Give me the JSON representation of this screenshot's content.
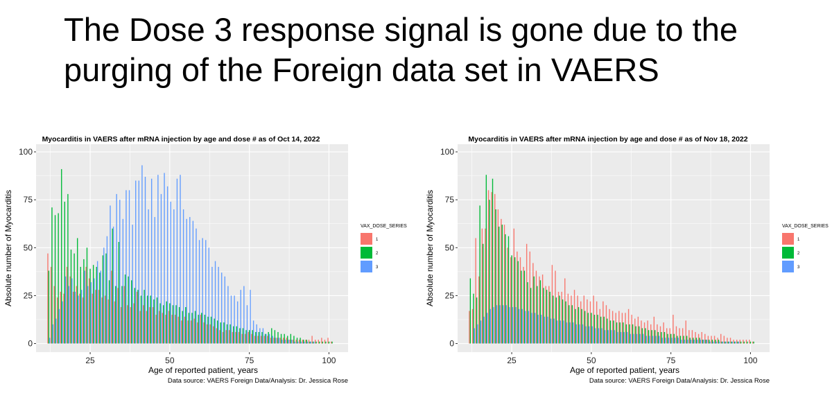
{
  "slide": {
    "title": "The Dose 3 response signal is gone due to the purging of the Foreign data set in VAERS"
  },
  "colors": {
    "dose_1": "#F8766D",
    "dose_2": "#00BA38",
    "dose_3": "#619CFF",
    "panel_bg": "#EBEBEB",
    "grid": "#FFFFFF"
  },
  "chart_data": [
    {
      "type": "bar",
      "title": "Myocarditis in VAERS after mRNA injection by age and dose # as of Oct 14, 2022",
      "xlabel": "Age of reported patient, years",
      "ylabel": "Absolute number of Myocarditis",
      "caption": "Data source: VAERS Foreign Data/Analysis: Dr. Jessica Rose",
      "xlim": [
        8,
        106
      ],
      "ylim": [
        -4.5,
        104
      ],
      "x_ticks": [
        25,
        50,
        75,
        100
      ],
      "y_ticks": [
        0,
        25,
        50,
        75,
        100
      ],
      "grid": true,
      "legend_title": "VAX_DOSE_SERIES",
      "legend_position": "right",
      "x": [
        12,
        13,
        14,
        15,
        16,
        17,
        18,
        19,
        20,
        21,
        22,
        23,
        24,
        25,
        26,
        27,
        28,
        29,
        30,
        31,
        32,
        33,
        34,
        35,
        36,
        37,
        38,
        39,
        40,
        41,
        42,
        43,
        44,
        45,
        46,
        47,
        48,
        49,
        50,
        51,
        52,
        53,
        54,
        55,
        56,
        57,
        58,
        59,
        60,
        61,
        62,
        63,
        64,
        65,
        66,
        67,
        68,
        69,
        70,
        71,
        72,
        73,
        74,
        75,
        76,
        77,
        78,
        79,
        80,
        81,
        82,
        83,
        84,
        85,
        86,
        87,
        88,
        89,
        90,
        91,
        92,
        93,
        94,
        95,
        96,
        97,
        98,
        99,
        100,
        101
      ],
      "series": [
        {
          "name": "1",
          "values": [
            47,
            40,
            30,
            24,
            27,
            26,
            40,
            35,
            27,
            30,
            26,
            24,
            40,
            34,
            26,
            28,
            28,
            24,
            25,
            23,
            38,
            22,
            29,
            19,
            30,
            20,
            19,
            21,
            27,
            17,
            20,
            17,
            19,
            19,
            15,
            17,
            16,
            15,
            17,
            15,
            15,
            14,
            12,
            14,
            12,
            12,
            13,
            11,
            15,
            11,
            10,
            10,
            9,
            8,
            7,
            6,
            7,
            7,
            6,
            6,
            6,
            5,
            5,
            6,
            5,
            4,
            4,
            4,
            4,
            4,
            3,
            3,
            3,
            3,
            3,
            3,
            2,
            2,
            2,
            2,
            2,
            2,
            2,
            4,
            2,
            2,
            3,
            2,
            3,
            1
          ]
        },
        {
          "name": "2",
          "values": [
            38,
            71,
            67,
            68,
            91,
            74,
            78,
            49,
            47,
            55,
            40,
            44,
            50,
            39,
            41,
            40,
            37,
            46,
            47,
            33,
            60,
            30,
            53,
            30,
            36,
            35,
            33,
            29,
            28,
            25,
            28,
            25,
            25,
            23,
            24,
            21,
            20,
            22,
            21,
            20,
            20,
            19,
            17,
            19,
            16,
            16,
            17,
            15,
            16,
            15,
            14,
            14,
            13,
            12,
            11,
            11,
            10,
            10,
            9,
            9,
            8,
            8,
            7,
            7,
            7,
            6,
            6,
            6,
            5,
            6,
            8,
            7,
            6,
            5,
            5,
            4,
            5,
            4,
            3,
            3,
            2,
            2,
            1,
            1,
            1,
            1,
            1,
            1,
            1,
            1
          ]
        },
        {
          "name": "3",
          "values": [
            3,
            10,
            13,
            18,
            22,
            35,
            30,
            34,
            27,
            25,
            28,
            38,
            30,
            32,
            34,
            43,
            38,
            50,
            56,
            72,
            61,
            78,
            75,
            65,
            80,
            80,
            62,
            85,
            85,
            93,
            87,
            70,
            86,
            66,
            88,
            78,
            89,
            82,
            74,
            70,
            86,
            88,
            70,
            65,
            66,
            64,
            60,
            54,
            55,
            54,
            50,
            40,
            43,
            40,
            37,
            35,
            30,
            25,
            25,
            22,
            28,
            30,
            20,
            28,
            12,
            10,
            8,
            8,
            5,
            5,
            4,
            3,
            3,
            2,
            2,
            2,
            2,
            1,
            1,
            1,
            1,
            1,
            1,
            1,
            0,
            0,
            0,
            0,
            0,
            0
          ]
        }
      ]
    },
    {
      "type": "bar",
      "title": "Myocarditis in VAERS after mRNA injection by age and dose # as of Nov 18, 2022",
      "xlabel": "Age of reported patient, years",
      "ylabel": "Absolute number of Myocarditis",
      "caption": "Data source: VAERS Foreign Data/Analysis: Dr. Jessica Rose",
      "xlim": [
        8,
        106
      ],
      "ylim": [
        -4.5,
        104
      ],
      "x_ticks": [
        25,
        50,
        75,
        100
      ],
      "y_ticks": [
        0,
        25,
        50,
        75,
        100
      ],
      "grid": true,
      "legend_title": "VAX_DOSE_SERIES",
      "legend_position": "right",
      "x": [
        12,
        13,
        14,
        15,
        16,
        17,
        18,
        19,
        20,
        21,
        22,
        23,
        24,
        25,
        26,
        27,
        28,
        29,
        30,
        31,
        32,
        33,
        34,
        35,
        36,
        37,
        38,
        39,
        40,
        41,
        42,
        43,
        44,
        45,
        46,
        47,
        48,
        49,
        50,
        51,
        52,
        53,
        54,
        55,
        56,
        57,
        58,
        59,
        60,
        61,
        62,
        63,
        64,
        65,
        66,
        67,
        68,
        69,
        70,
        71,
        72,
        73,
        74,
        75,
        76,
        77,
        78,
        79,
        80,
        81,
        82,
        83,
        84,
        85,
        86,
        87,
        88,
        89,
        90,
        91,
        92,
        93,
        94,
        95,
        96,
        97,
        98,
        99,
        100,
        101
      ],
      "series": [
        {
          "name": "1",
          "values": [
            17,
            18,
            55,
            35,
            60,
            60,
            80,
            79,
            78,
            70,
            65,
            62,
            50,
            45,
            60,
            48,
            45,
            40,
            52,
            48,
            42,
            38,
            35,
            36,
            30,
            30,
            41,
            38,
            27,
            27,
            34,
            26,
            25,
            28,
            25,
            22,
            25,
            23,
            22,
            25,
            22,
            18,
            22,
            20,
            18,
            17,
            16,
            17,
            16,
            16,
            18,
            15,
            13,
            14,
            12,
            11,
            12,
            10,
            14,
            10,
            9,
            11,
            8,
            8,
            15,
            9,
            8,
            8,
            12,
            7,
            7,
            6,
            5,
            6,
            5,
            4,
            4,
            4,
            3,
            5,
            4,
            3,
            3,
            2,
            2,
            2,
            2,
            2,
            2,
            1
          ]
        },
        {
          "name": "2",
          "values": [
            34,
            26,
            24,
            72,
            52,
            88,
            75,
            86,
            70,
            61,
            62,
            57,
            56,
            46,
            45,
            43,
            38,
            38,
            32,
            29,
            35,
            30,
            33,
            29,
            28,
            27,
            25,
            24,
            25,
            23,
            22,
            20,
            20,
            18,
            19,
            18,
            17,
            16,
            16,
            15,
            15,
            14,
            14,
            13,
            12,
            12,
            11,
            11,
            11,
            10,
            10,
            10,
            9,
            9,
            8,
            8,
            7,
            7,
            7,
            6,
            6,
            6,
            5,
            5,
            5,
            4,
            4,
            4,
            4,
            3,
            3,
            3,
            3,
            2,
            2,
            2,
            2,
            2,
            2,
            1,
            1,
            1,
            1,
            1,
            1,
            1,
            1,
            1,
            1,
            1
          ]
        },
        {
          "name": "3",
          "values": [
            0,
            8,
            10,
            12,
            14,
            16,
            18,
            19,
            20,
            20,
            20,
            20,
            19,
            19,
            19,
            18,
            18,
            17,
            17,
            16,
            16,
            15,
            15,
            14,
            14,
            13,
            13,
            12,
            12,
            12,
            11,
            11,
            11,
            10,
            10,
            10,
            9,
            9,
            9,
            8,
            8,
            8,
            7,
            7,
            7,
            7,
            6,
            6,
            6,
            6,
            5,
            5,
            5,
            5,
            5,
            4,
            4,
            4,
            4,
            4,
            3,
            3,
            3,
            3,
            3,
            3,
            2,
            2,
            2,
            2,
            2,
            2,
            2,
            2,
            2,
            1,
            1,
            1,
            1,
            1,
            1,
            1,
            1,
            1,
            1,
            0,
            0,
            0,
            0,
            0
          ]
        }
      ]
    }
  ]
}
